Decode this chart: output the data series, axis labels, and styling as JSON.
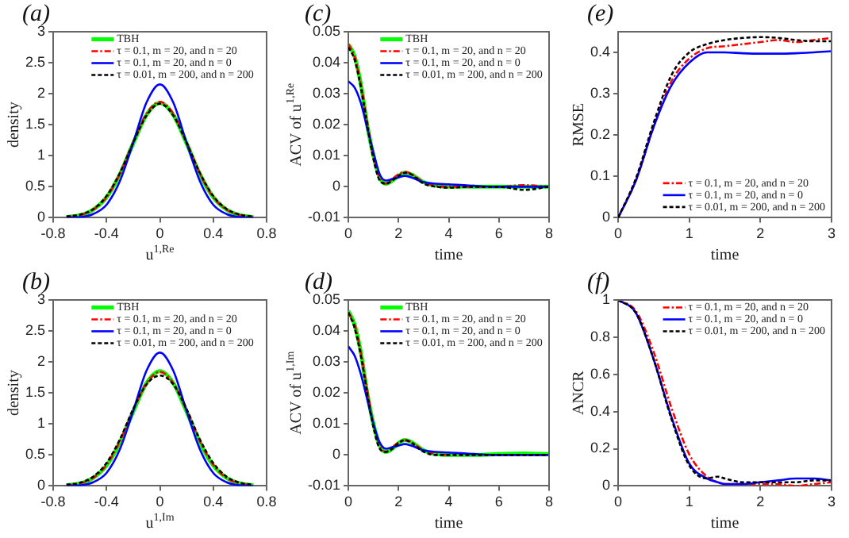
{
  "chart_data": [
    {
      "type": "line",
      "title": "(a)",
      "xlabel": "u$^{1,Re}$",
      "ylabel": "density",
      "xlim": [
        -0.8,
        0.8
      ],
      "xticks": [
        -0.8,
        -0.4,
        0,
        0.4,
        0.8
      ],
      "ylim": [
        0,
        3
      ],
      "yticks": [
        0,
        0.5,
        1,
        1.5,
        2,
        2.5,
        3
      ],
      "legend": "top",
      "x": [
        -0.7,
        -0.6,
        -0.5,
        -0.4,
        -0.3,
        -0.2,
        -0.1,
        0,
        0.1,
        0.2,
        0.3,
        0.4,
        0.5,
        0.6,
        0.7
      ],
      "series": [
        {
          "name": "TBH",
          "color": "#00ff00",
          "line_style": "solid",
          "values": [
            0.01,
            0.04,
            0.13,
            0.33,
            0.7,
            1.2,
            1.66,
            1.85,
            1.66,
            1.2,
            0.7,
            0.33,
            0.13,
            0.04,
            0.01
          ]
        },
        {
          "name": "τ = 0.1, m = 20, and n = 20",
          "color": "#ff0000",
          "line_style": "dashed",
          "values": [
            0.01,
            0.04,
            0.13,
            0.33,
            0.71,
            1.22,
            1.68,
            1.87,
            1.68,
            1.22,
            0.71,
            0.33,
            0.13,
            0.04,
            0.01
          ]
        },
        {
          "name": "τ = 0.1, m = 20, and n = 0",
          "color": "#0000ff",
          "line_style": "solid",
          "values": [
            0,
            0.01,
            0.06,
            0.21,
            0.59,
            1.21,
            1.86,
            2.15,
            1.86,
            1.21,
            0.59,
            0.21,
            0.06,
            0.01,
            0
          ]
        },
        {
          "name": "τ = 0.01, m = 200, and n = 200",
          "color": "#000000",
          "line_style": "dotted",
          "values": [
            0.02,
            0.05,
            0.14,
            0.35,
            0.72,
            1.21,
            1.65,
            1.84,
            1.65,
            1.21,
            0.72,
            0.35,
            0.14,
            0.05,
            0.02
          ]
        }
      ]
    },
    {
      "type": "line",
      "title": "(c)",
      "xlabel": "time",
      "ylabel": "ACV of u$^{1,Re}$",
      "xlim": [
        0,
        8
      ],
      "xticks": [
        0,
        2,
        4,
        6,
        8
      ],
      "ylim": [
        -0.01,
        0.05
      ],
      "yticks": [
        -0.01,
        0,
        0.01,
        0.02,
        0.03,
        0.04,
        0.05
      ],
      "legend": "top",
      "x": [
        0,
        0.25,
        0.5,
        0.75,
        1,
        1.25,
        1.5,
        1.75,
        2,
        2.25,
        2.5,
        3,
        3.5,
        4,
        5,
        6,
        7,
        8
      ],
      "series": [
        {
          "name": "TBH",
          "color": "#00ff00",
          "line_style": "solid",
          "values": [
            0.046,
            0.042,
            0.033,
            0.02,
            0.01,
            0.003,
            0.001,
            0.002,
            0.0035,
            0.0045,
            0.004,
            0.0015,
            0.0003,
            0,
            0,
            0,
            0,
            0
          ]
        },
        {
          "name": "τ = 0.1, m = 20, and n = 20",
          "color": "#ff0000",
          "line_style": "dashed",
          "values": [
            0.046,
            0.042,
            0.033,
            0.021,
            0.01,
            0.003,
            0.001,
            0.0025,
            0.004,
            0.0048,
            0.0042,
            0.0015,
            0.0003,
            0,
            0,
            0,
            0.0005,
            0
          ]
        },
        {
          "name": "τ = 0.1, m = 20, and n = 0",
          "color": "#0000ff",
          "line_style": "solid",
          "values": [
            0.034,
            0.032,
            0.027,
            0.019,
            0.011,
            0.004,
            0.002,
            0.0025,
            0.003,
            0.0035,
            0.003,
            0.0015,
            0.001,
            0.0008,
            0.0003,
            0,
            0,
            0
          ]
        },
        {
          "name": "τ = 0.01, m = 200, and n = 200",
          "color": "#000000",
          "line_style": "dotted",
          "values": [
            0.045,
            0.041,
            0.032,
            0.02,
            0.009,
            0.002,
            0.001,
            0.002,
            0.0035,
            0.0045,
            0.004,
            0.001,
            0,
            -0.0003,
            0,
            0,
            -0.001,
            0
          ]
        }
      ]
    },
    {
      "type": "line",
      "title": "(e)",
      "xlabel": "time",
      "ylabel": "RMSE",
      "xlim": [
        0,
        3
      ],
      "xticks": [
        0,
        1,
        2,
        3
      ],
      "ylim": [
        0,
        0.45
      ],
      "yticks": [
        0,
        0.1,
        0.2,
        0.3,
        0.4
      ],
      "legend": "bottom right",
      "x": [
        0,
        0.25,
        0.5,
        0.75,
        1,
        1.25,
        1.5,
        1.75,
        2,
        2.25,
        2.5,
        2.75,
        3
      ],
      "series": [
        {
          "name": "τ = 0.1, m = 20, and n = 20",
          "color": "#ff0000",
          "line_style": "dashed",
          "values": [
            0,
            0.09,
            0.22,
            0.33,
            0.385,
            0.41,
            0.415,
            0.42,
            0.425,
            0.43,
            0.425,
            0.43,
            0.435
          ]
        },
        {
          "name": "τ = 0.1, m = 20, and n = 0",
          "color": "#0000ff",
          "line_style": "solid",
          "values": [
            0,
            0.09,
            0.22,
            0.32,
            0.375,
            0.4,
            0.4,
            0.398,
            0.397,
            0.397,
            0.398,
            0.4,
            0.403
          ]
        },
        {
          "name": "τ = 0.01, m = 200, and n = 200",
          "color": "#000000",
          "line_style": "dotted",
          "values": [
            0,
            0.095,
            0.23,
            0.345,
            0.4,
            0.42,
            0.43,
            0.435,
            0.437,
            0.435,
            0.43,
            0.427,
            0.427
          ]
        }
      ]
    },
    {
      "type": "line",
      "title": "(b)",
      "xlabel": "u$^{1,Im}$",
      "ylabel": "density",
      "xlim": [
        -0.8,
        0.8
      ],
      "xticks": [
        -0.8,
        -0.4,
        0,
        0.4,
        0.8
      ],
      "ylim": [
        0,
        3
      ],
      "yticks": [
        0,
        0.5,
        1,
        1.5,
        2,
        2.5,
        3
      ],
      "legend": "top",
      "x": [
        -0.7,
        -0.6,
        -0.5,
        -0.4,
        -0.3,
        -0.2,
        -0.1,
        0,
        0.1,
        0.2,
        0.3,
        0.4,
        0.5,
        0.6,
        0.7
      ],
      "series": [
        {
          "name": "TBH",
          "color": "#00ff00",
          "line_style": "solid",
          "values": [
            0.01,
            0.04,
            0.13,
            0.33,
            0.7,
            1.2,
            1.66,
            1.85,
            1.66,
            1.2,
            0.7,
            0.33,
            0.13,
            0.04,
            0.01
          ]
        },
        {
          "name": "τ = 0.1, m = 20, and n = 20",
          "color": "#ff0000",
          "line_style": "dashed",
          "values": [
            0.01,
            0.04,
            0.13,
            0.34,
            0.72,
            1.22,
            1.66,
            1.84,
            1.66,
            1.22,
            0.72,
            0.34,
            0.13,
            0.04,
            0.01
          ]
        },
        {
          "name": "τ = 0.1, m = 20, and n = 0",
          "color": "#0000ff",
          "line_style": "solid",
          "values": [
            0,
            0.01,
            0.06,
            0.21,
            0.59,
            1.21,
            1.86,
            2.15,
            1.86,
            1.21,
            0.59,
            0.21,
            0.06,
            0.01,
            0
          ]
        },
        {
          "name": "τ = 0.01, m = 200, and n = 200",
          "color": "#000000",
          "line_style": "dotted",
          "values": [
            0.02,
            0.05,
            0.15,
            0.37,
            0.75,
            1.24,
            1.64,
            1.78,
            1.64,
            1.24,
            0.75,
            0.37,
            0.15,
            0.05,
            0.02
          ]
        }
      ]
    },
    {
      "type": "line",
      "title": "(d)",
      "xlabel": "time",
      "ylabel": "ACV of u$^{1,Im}$",
      "xlim": [
        0,
        8
      ],
      "xticks": [
        0,
        2,
        4,
        6,
        8
      ],
      "ylim": [
        -0.01,
        0.05
      ],
      "yticks": [
        -0.01,
        0,
        0.01,
        0.02,
        0.03,
        0.04,
        0.05
      ],
      "legend": "top",
      "x": [
        0,
        0.25,
        0.5,
        0.75,
        1,
        1.25,
        1.5,
        1.75,
        2,
        2.25,
        2.5,
        3,
        3.5,
        4,
        5,
        6,
        7,
        8
      ],
      "series": [
        {
          "name": "TBH",
          "color": "#00ff00",
          "line_style": "solid",
          "values": [
            0.0465,
            0.042,
            0.033,
            0.02,
            0.01,
            0.003,
            0.001,
            0.002,
            0.0038,
            0.0048,
            0.0042,
            0.0015,
            0.0003,
            0,
            0,
            0.0003,
            0.0005,
            0.0002
          ]
        },
        {
          "name": "τ = 0.1, m = 20, and n = 20",
          "color": "#ff0000",
          "line_style": "dashed",
          "values": [
            0.046,
            0.042,
            0.033,
            0.021,
            0.01,
            0.003,
            0.001,
            0.0025,
            0.004,
            0.0048,
            0.0042,
            0.0015,
            0.0003,
            0,
            null,
            null,
            null,
            null
          ]
        },
        {
          "name": "τ = 0.1, m = 20, and n = 0",
          "color": "#0000ff",
          "line_style": "solid",
          "values": [
            0.035,
            0.032,
            0.026,
            0.018,
            0.01,
            0.004,
            0.002,
            0.0025,
            0.003,
            0.0035,
            0.003,
            0.0015,
            0.001,
            0.0008,
            0.0003,
            0,
            0,
            0
          ]
        },
        {
          "name": "τ = 0.01, m = 200, and n = 200",
          "color": "#000000",
          "line_style": "dotted",
          "values": [
            0.046,
            0.041,
            0.032,
            0.02,
            0.009,
            0.002,
            0.001,
            0.002,
            0.0038,
            0.0048,
            0.004,
            0.001,
            0,
            0,
            0,
            0,
            0,
            0
          ]
        }
      ]
    },
    {
      "type": "line",
      "title": "(f)",
      "xlabel": "time",
      "ylabel": "ANCR",
      "xlim": [
        0,
        3
      ],
      "xticks": [
        0,
        1,
        2,
        3
      ],
      "ylim": [
        0,
        1
      ],
      "yticks": [
        0,
        0.2,
        0.4,
        0.6,
        0.8,
        1
      ],
      "legend": "top right",
      "x": [
        0,
        0.25,
        0.5,
        0.75,
        1,
        1.25,
        1.4,
        1.5,
        1.75,
        2,
        2.25,
        2.5,
        2.75,
        3
      ],
      "series": [
        {
          "name": "τ = 0.1, m = 20, and n = 20",
          "color": "#ff0000",
          "line_style": "dashed",
          "values": [
            1,
            0.94,
            0.72,
            0.42,
            0.17,
            0.05,
            0.02,
            0.01,
            0.01,
            0.01,
            0.01,
            0,
            0.01,
            0.02
          ]
        },
        {
          "name": "τ = 0.1, m = 20, and n = 0",
          "color": "#0000ff",
          "line_style": "solid",
          "values": [
            1,
            0.93,
            0.68,
            0.37,
            0.12,
            0.04,
            0.02,
            0.01,
            0.01,
            0.02,
            0.03,
            0.04,
            0.04,
            0.03
          ]
        },
        {
          "name": "τ = 0.01, m = 200, and n = 200",
          "color": "#000000",
          "line_style": "dotted",
          "values": [
            1,
            0.93,
            0.68,
            0.36,
            0.11,
            0.04,
            0.05,
            0.04,
            0.02,
            0.02,
            0.02,
            0.02,
            0.03,
            0.03
          ]
        }
      ]
    }
  ]
}
